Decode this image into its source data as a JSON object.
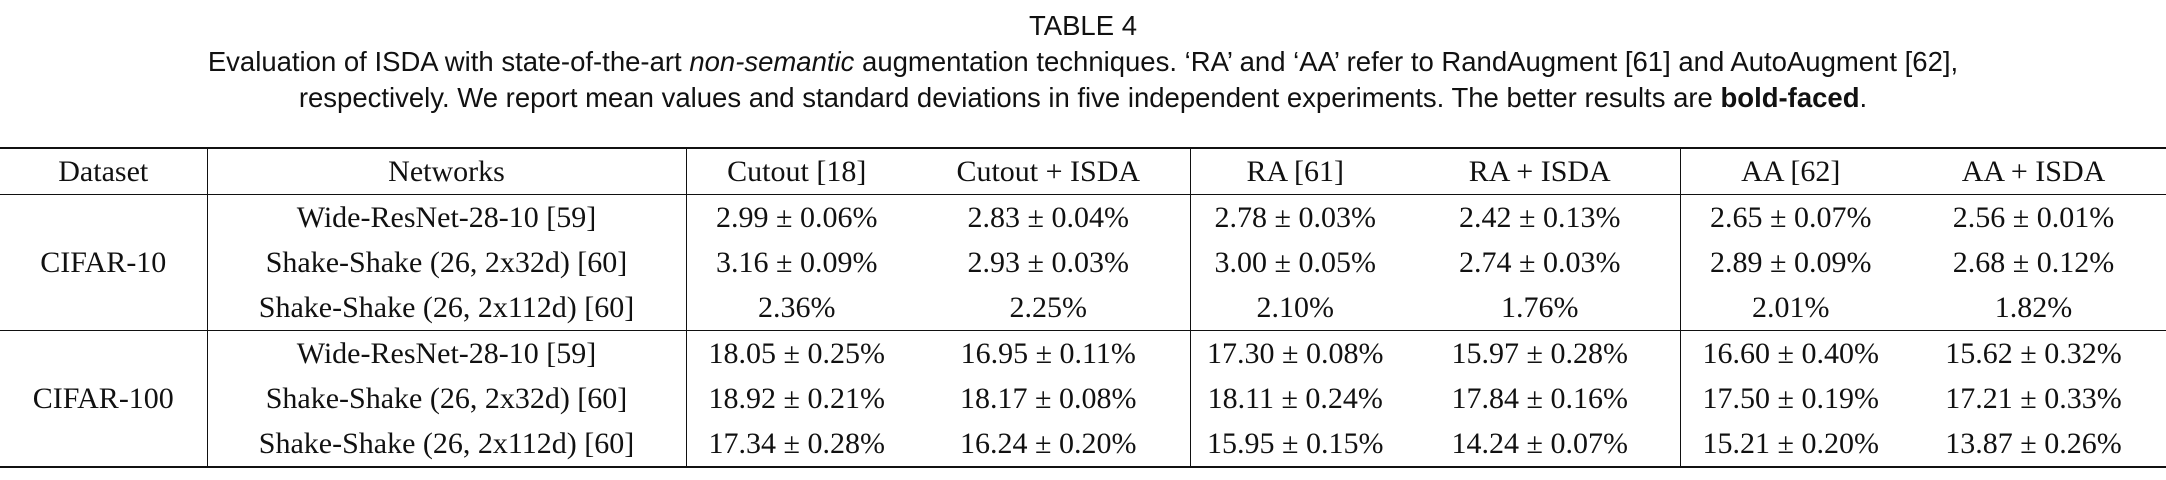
{
  "caption": {
    "title": "TABLE 4",
    "segments": [
      "Evaluation of ISDA with state-of-the-art ",
      "non-semantic",
      " augmentation techniques. ‘RA’ and ‘AA’ refer to RandAugment [61] and AutoAugment [62],",
      "respectively. We report mean values and standard deviations in five independent experiments. The better results are ",
      "bold-faced",
      "."
    ]
  },
  "table": {
    "header": [
      "Dataset",
      "Networks",
      "Cutout [18]",
      "Cutout + ISDA",
      "RA [61]",
      "RA + ISDA",
      "AA [62]",
      "AA + ISDA"
    ],
    "groups": [
      {
        "dataset": "CIFAR-10",
        "rows": [
          {
            "network": "Wide-ResNet-28-10 [59]",
            "values": [
              "2.99 ± 0.06%",
              "2.83 ± 0.04%",
              "2.78 ± 0.03%",
              "2.42 ± 0.13%",
              "2.65 ± 0.07%",
              "2.56 ± 0.01%"
            ]
          },
          {
            "network": "Shake-Shake (26, 2x32d) [60]",
            "values": [
              "3.16 ± 0.09%",
              "2.93 ± 0.03%",
              "3.00 ± 0.05%",
              "2.74 ± 0.03%",
              "2.89 ± 0.09%",
              "2.68 ± 0.12%"
            ]
          },
          {
            "network": "Shake-Shake (26, 2x112d) [60]",
            "values": [
              "2.36%",
              "2.25%",
              "2.10%",
              "1.76%",
              "2.01%",
              "1.82%"
            ]
          }
        ]
      },
      {
        "dataset": "CIFAR-100",
        "rows": [
          {
            "network": "Wide-ResNet-28-10 [59]",
            "values": [
              "18.05 ± 0.25%",
              "16.95 ± 0.11%",
              "17.30 ± 0.08%",
              "15.97 ± 0.28%",
              "16.60 ± 0.40%",
              "15.62 ± 0.32%"
            ]
          },
          {
            "network": "Shake-Shake (26, 2x32d) [60]",
            "values": [
              "18.92 ± 0.21%",
              "18.17 ± 0.08%",
              "18.11 ± 0.24%",
              "17.84 ± 0.16%",
              "17.50 ± 0.19%",
              "17.21 ± 0.33%"
            ]
          },
          {
            "network": "Shake-Shake (26, 2x112d) [60]",
            "values": [
              "17.34 ± 0.28%",
              "16.24 ± 0.20%",
              "15.95 ± 0.15%",
              "14.24 ± 0.07%",
              "15.21 ± 0.20%",
              "13.87 ± 0.26%"
            ]
          }
        ]
      }
    ]
  }
}
